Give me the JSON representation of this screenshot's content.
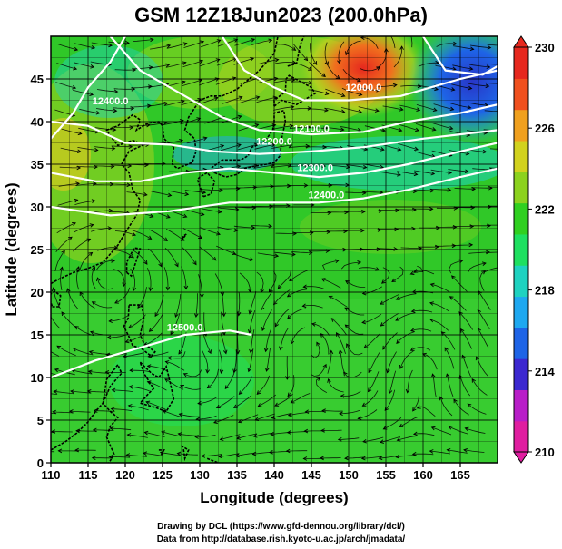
{
  "title": "GSM 12Z18Jun2023 (200.0hPa)",
  "x_axis": {
    "label": "Longitude (degrees)",
    "ticks": [
      "110",
      "115",
      "120",
      "125",
      "130",
      "135",
      "140",
      "145",
      "150",
      "155",
      "160",
      "165"
    ],
    "range": [
      110,
      170
    ]
  },
  "y_axis": {
    "label": "Latitude (degrees)",
    "ticks": [
      "0",
      "5",
      "10",
      "15",
      "20",
      "25",
      "30",
      "35",
      "40",
      "45"
    ],
    "range": [
      0,
      50
    ]
  },
  "colorbar": {
    "ticks": [
      "230",
      "226",
      "222",
      "218",
      "214",
      "210"
    ],
    "range": [
      210,
      230
    ],
    "colors": [
      "#e01ea0",
      "#b81ec8",
      "#3c28d0",
      "#1e64e6",
      "#1ea8f0",
      "#1ed2c0",
      "#1ee060",
      "#30d020",
      "#8cd21e",
      "#d2d21e",
      "#f0a01e",
      "#f0501e",
      "#e6281e"
    ]
  },
  "contours": [
    {
      "label": "12000.0",
      "lon": 152,
      "lat": 43.6
    },
    {
      "label": "12100.0",
      "lon": 145,
      "lat": 38.8
    },
    {
      "label": "12200.0",
      "lon": 140,
      "lat": 37.3
    },
    {
      "label": "12300.0",
      "lon": 145.5,
      "lat": 34.2
    },
    {
      "label": "12400.0",
      "lon": 147,
      "lat": 31
    },
    {
      "label": "12500.0",
      "lon": 128,
      "lat": 15.5
    },
    {
      "label": "12400.0",
      "lon": 118,
      "lat": 42
    }
  ],
  "credits": {
    "line1": "Drawing by DCL (https://www.gfd-dennou.org/library/dcl/)",
    "line2": "Data from http://database.rish.kyoto-u.ac.jp/arch/jmadata/"
  }
}
